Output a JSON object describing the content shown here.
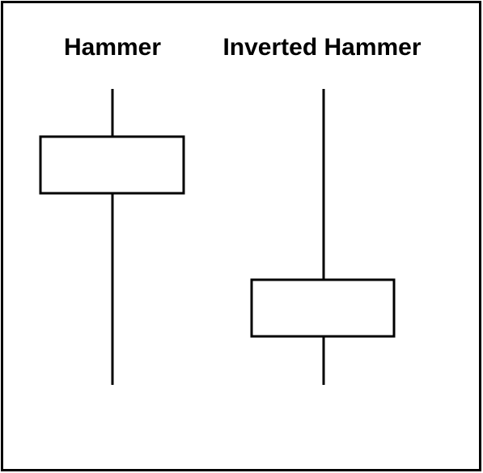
{
  "colors": {
    "stroke": "#000000",
    "background": "#ffffff"
  },
  "candles": [
    {
      "label": "Hammer",
      "wick_top": "short",
      "wick_bottom": "long"
    },
    {
      "label": "Inverted Hammer",
      "wick_top": "long",
      "wick_bottom": "short"
    }
  ]
}
